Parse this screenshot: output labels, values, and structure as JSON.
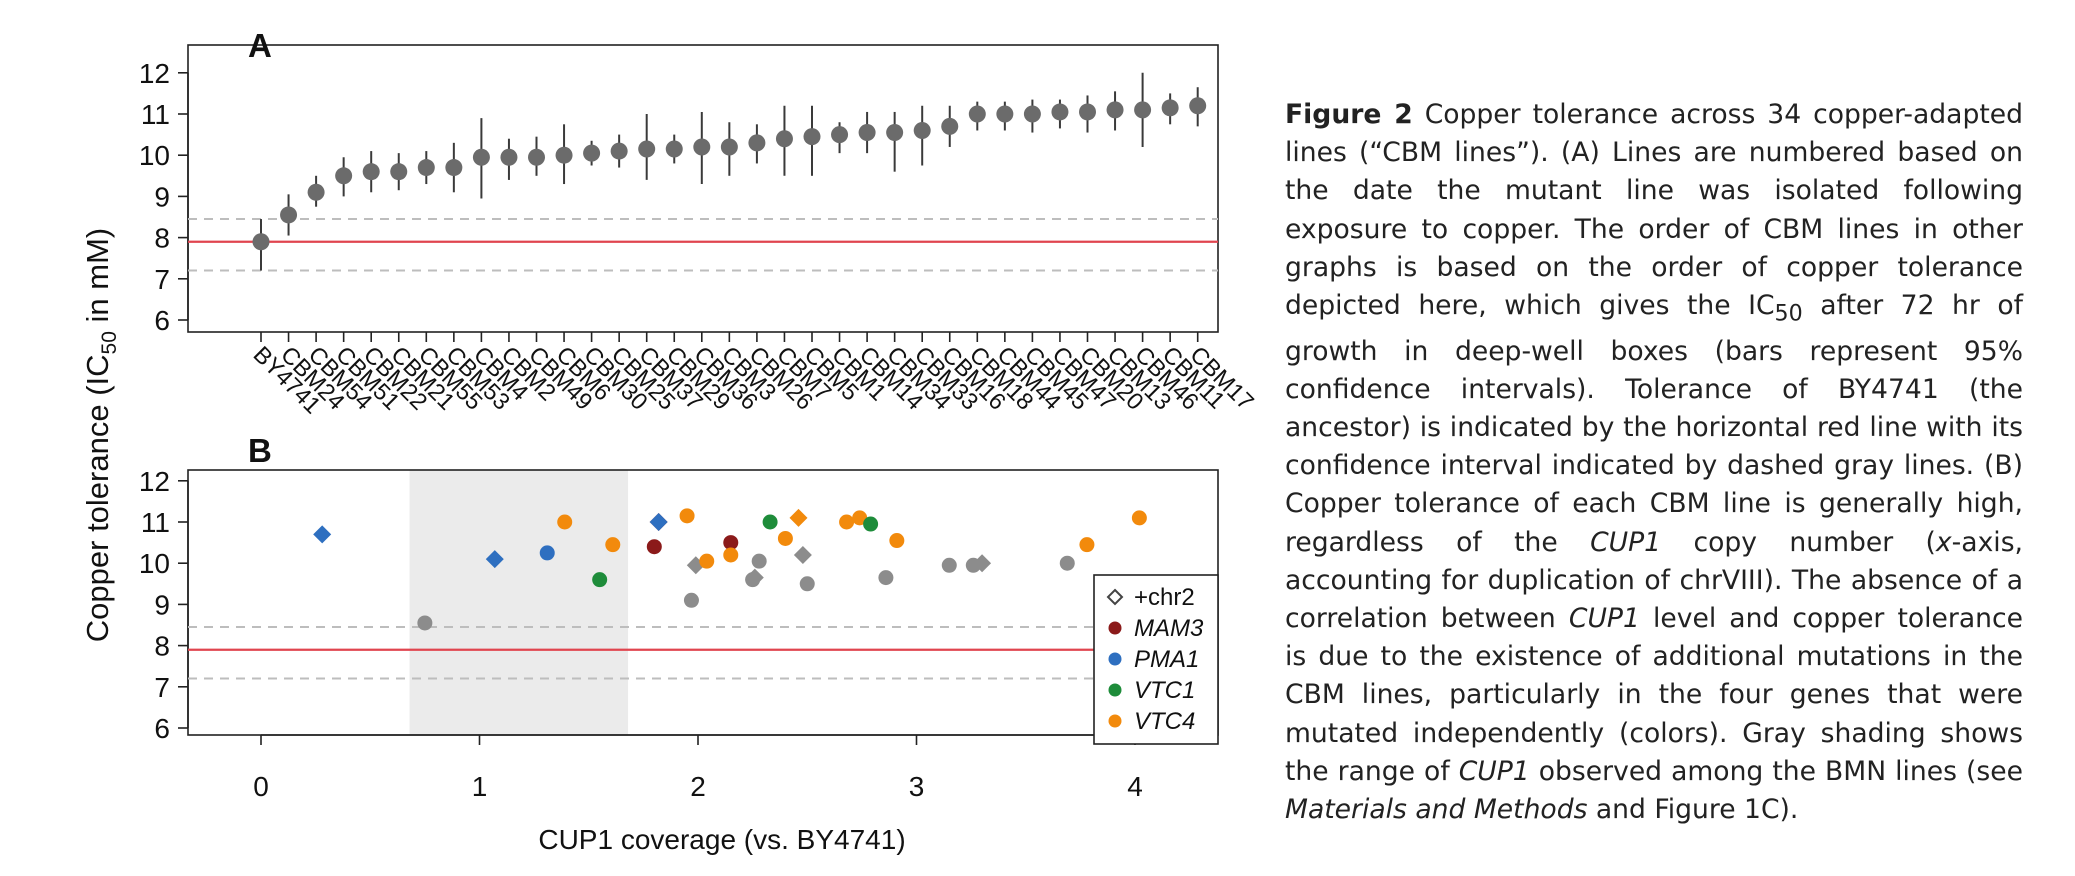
{
  "figure": {
    "ylabel": "Copper tolerance (IC",
    "ylabel_sub": "50",
    "ylabel_end": " in mM)"
  },
  "chart_data": [
    {
      "type": "scatter",
      "panel_label": "A",
      "x_tick_labels": [
        "BY4741",
        "CBM24",
        "CBM54",
        "CBM51",
        "CBM22",
        "CBM21",
        "CBM55",
        "CBM53",
        "CBM4",
        "CBM2",
        "CBM49",
        "CBM6",
        "CBM30",
        "CBM25",
        "CBM37",
        "CBM29",
        "CBM36",
        "CBM3",
        "CBM26",
        "CBM7",
        "CBM5",
        "CBM1",
        "CBM14",
        "CBM34",
        "CBM33",
        "CBM16",
        "CBM18",
        "CBM44",
        "CBM45",
        "CBM47",
        "CBM20",
        "CBM13",
        "CBM46",
        "CBM11",
        "CBM17"
      ],
      "values": [
        7.9,
        8.55,
        9.1,
        9.5,
        9.6,
        9.6,
        9.7,
        9.7,
        9.95,
        9.95,
        9.95,
        10.0,
        10.05,
        10.1,
        10.15,
        10.15,
        10.2,
        10.2,
        10.3,
        10.4,
        10.45,
        10.5,
        10.55,
        10.55,
        10.6,
        10.7,
        11.0,
        11.0,
        11.0,
        11.05,
        11.05,
        11.1,
        11.1,
        11.15,
        11.2
      ],
      "ci_low": [
        7.2,
        8.05,
        8.75,
        9.0,
        9.1,
        9.15,
        9.3,
        9.1,
        8.95,
        9.4,
        9.5,
        9.3,
        9.75,
        9.7,
        9.4,
        9.8,
        9.3,
        9.5,
        9.8,
        9.5,
        9.5,
        10.05,
        10.05,
        9.6,
        9.75,
        10.2,
        10.6,
        10.6,
        10.55,
        10.65,
        10.55,
        10.6,
        10.2,
        10.75,
        10.7
      ],
      "ci_high": [
        8.45,
        9.05,
        9.5,
        9.95,
        10.1,
        10.05,
        10.1,
        10.3,
        10.9,
        10.4,
        10.45,
        10.75,
        10.35,
        10.5,
        11.0,
        10.5,
        11.05,
        10.8,
        10.75,
        11.2,
        11.2,
        10.8,
        11.05,
        11.05,
        11.2,
        11.2,
        11.3,
        11.3,
        11.35,
        11.35,
        11.45,
        11.55,
        12.0,
        11.5,
        11.65
      ],
      "ylim": [
        6,
        12
      ],
      "yticks": [
        "6",
        "7",
        "8",
        "9",
        "10",
        "11",
        "12"
      ],
      "reference_line": 7.9,
      "reference_ci": [
        7.2,
        8.45
      ],
      "colors": {
        "point": "#6b6b6b",
        "reference": "#e0454f",
        "ci_line": "#bdbdbd",
        "errorbar": "#3a3a3a"
      }
    },
    {
      "type": "scatter",
      "panel_label": "B",
      "xlabel": "CUP1 coverage (vs. BY4741)",
      "xlim": [
        -0.2,
        4.4
      ],
      "xticks": [
        "0",
        "1",
        "2",
        "3",
        "4"
      ],
      "ylim": [
        6,
        12
      ],
      "yticks": [
        "6",
        "7",
        "8",
        "9",
        "10",
        "11",
        "12"
      ],
      "reference_line": 7.9,
      "reference_ci": [
        7.2,
        8.45
      ],
      "shaded_range": [
        0.68,
        1.68
      ],
      "legend_placement": "bottom-right",
      "legend": [
        {
          "label": "+chr2",
          "marker": "diamond-open",
          "color": "#444444"
        },
        {
          "label": "MAM3",
          "marker": "circle",
          "color": "#8b1a1a",
          "italic": true
        },
        {
          "label": "PMA1",
          "marker": "circle",
          "color": "#2e6fc0",
          "italic": true
        },
        {
          "label": "VTC1",
          "marker": "circle",
          "color": "#1e8c3a",
          "italic": true
        },
        {
          "label": "VTC4",
          "marker": "circle",
          "color": "#f28a0c",
          "italic": true
        }
      ],
      "points": [
        {
          "x": 0.28,
          "y": 10.7,
          "group": "PMA1",
          "chr2": true
        },
        {
          "x": 0.75,
          "y": 8.55,
          "group": "none",
          "chr2": false
        },
        {
          "x": 1.07,
          "y": 10.1,
          "group": "PMA1",
          "chr2": true
        },
        {
          "x": 1.31,
          "y": 10.25,
          "group": "PMA1",
          "chr2": false
        },
        {
          "x": 1.39,
          "y": 11.0,
          "group": "VTC4",
          "chr2": false
        },
        {
          "x": 1.55,
          "y": 9.6,
          "group": "VTC1",
          "chr2": false
        },
        {
          "x": 1.61,
          "y": 10.45,
          "group": "VTC4",
          "chr2": false
        },
        {
          "x": 1.8,
          "y": 10.4,
          "group": "MAM3",
          "chr2": false
        },
        {
          "x": 1.82,
          "y": 11.0,
          "group": "MAM3",
          "chr2": true
        },
        {
          "x": 1.82,
          "y": 11.0,
          "group": "PMA1",
          "chr2": true
        },
        {
          "x": 1.95,
          "y": 11.15,
          "group": "VTC4",
          "chr2": false
        },
        {
          "x": 1.97,
          "y": 9.1,
          "group": "none",
          "chr2": false
        },
        {
          "x": 1.99,
          "y": 9.95,
          "group": "none",
          "chr2": true
        },
        {
          "x": 2.04,
          "y": 10.05,
          "group": "VTC4",
          "chr2": false
        },
        {
          "x": 2.15,
          "y": 10.5,
          "group": "MAM3",
          "chr2": false
        },
        {
          "x": 2.15,
          "y": 10.2,
          "group": "VTC4",
          "chr2": false
        },
        {
          "x": 2.25,
          "y": 9.6,
          "group": "none",
          "chr2": false
        },
        {
          "x": 2.26,
          "y": 9.65,
          "group": "none",
          "chr2": true
        },
        {
          "x": 2.28,
          "y": 10.05,
          "group": "none",
          "chr2": false
        },
        {
          "x": 2.33,
          "y": 11.0,
          "group": "VTC1",
          "chr2": false
        },
        {
          "x": 2.4,
          "y": 10.6,
          "group": "VTC4",
          "chr2": false
        },
        {
          "x": 2.46,
          "y": 11.1,
          "group": "VTC4",
          "chr2": true
        },
        {
          "x": 2.48,
          "y": 10.2,
          "group": "none",
          "chr2": true
        },
        {
          "x": 2.5,
          "y": 9.5,
          "group": "none",
          "chr2": false
        },
        {
          "x": 2.68,
          "y": 11.0,
          "group": "VTC4",
          "chr2": false
        },
        {
          "x": 2.74,
          "y": 11.1,
          "group": "VTC4",
          "chr2": false
        },
        {
          "x": 2.79,
          "y": 10.95,
          "group": "VTC1",
          "chr2": false
        },
        {
          "x": 2.86,
          "y": 9.65,
          "group": "none",
          "chr2": false
        },
        {
          "x": 2.91,
          "y": 10.55,
          "group": "VTC4",
          "chr2": false
        },
        {
          "x": 3.15,
          "y": 9.95,
          "group": "none",
          "chr2": false
        },
        {
          "x": 3.26,
          "y": 9.95,
          "group": "none",
          "chr2": false
        },
        {
          "x": 3.3,
          "y": 10.0,
          "group": "none",
          "chr2": true
        },
        {
          "x": 3.69,
          "y": 10.0,
          "group": "none",
          "chr2": false
        },
        {
          "x": 3.78,
          "y": 10.45,
          "group": "VTC4",
          "chr2": false
        },
        {
          "x": 4.02,
          "y": 11.1,
          "group": "VTC4",
          "chr2": false
        }
      ],
      "colors": {
        "none": "#8c8c8c",
        "MAM3": "#8b1a1a",
        "PMA1": "#2e6fc0",
        "VTC1": "#1e8c3a",
        "VTC4": "#f28a0c",
        "shade": "#ebebeb"
      }
    }
  ],
  "caption": {
    "label": "Figure 2",
    "s1": " Copper tolerance across 34 copper-adapted lines (“CBM lines”). (A) Lines are numbered based on the date the mutant line was isolated following exposure to copper. The order of CBM lines in other graphs is based on the order of copper tolerance depicted here, which gives the IC",
    "s1_sub": "50",
    "s2": " after 72 hr of growth in deep-well boxes (bars represent 95% confidence intervals). Tolerance of BY4741 (the ancestor) is indicated by the horizontal red line with its confidence interval indicated by dashed gray lines. (B) Copper tolerance of each CBM line is generally high, regardless of the ",
    "i1": "CUP1",
    "s3": " copy number (",
    "i2": "x",
    "s4": "-axis, accounting for duplication of chrVIII). The absence of a correlation between ",
    "i3": "CUP1",
    "s5": " level and copper tolerance is due to the existence of additional mutations in the CBM lines, particularly in the four genes that were mutated independently (colors). Gray shading shows the range of ",
    "i4": "CUP1",
    "s6": " observed among the BMN lines (see ",
    "i5": "Materials and Methods",
    "s7": " and Figure 1C)."
  }
}
